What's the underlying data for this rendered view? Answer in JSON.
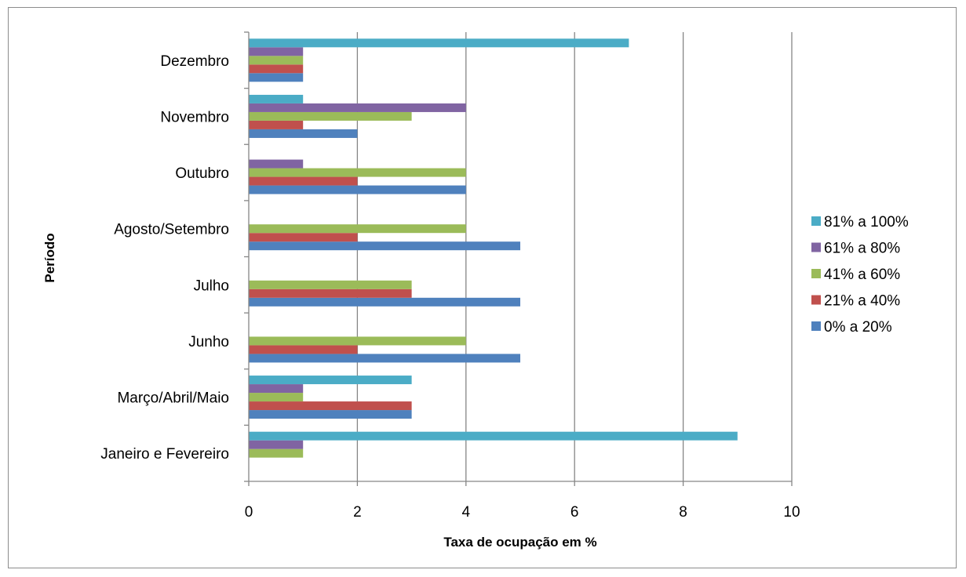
{
  "chart_data": {
    "type": "bar",
    "orientation": "horizontal",
    "title": "",
    "xlabel": "Taxa de ocupação em %",
    "ylabel": "Período",
    "xlim": [
      0,
      10
    ],
    "xticks": [
      0,
      2,
      4,
      6,
      8,
      10
    ],
    "grid": true,
    "legend_position": "right",
    "categories": [
      "Janeiro e Fevereiro",
      "Março/Abril/Maio",
      "Junho",
      "Julho",
      "Agosto/Setembro",
      "Outubro",
      "Novembro",
      "Dezembro"
    ],
    "series": [
      {
        "name": "0% a 20%",
        "color": "#4F81BD",
        "values": [
          0,
          3,
          5,
          5,
          5,
          4,
          2,
          1
        ]
      },
      {
        "name": "21% a 40%",
        "color": "#C0504D",
        "values": [
          0,
          3,
          2,
          3,
          2,
          2,
          1,
          1
        ]
      },
      {
        "name": "41% a 60%",
        "color": "#9BBB59",
        "values": [
          1,
          1,
          4,
          3,
          4,
          4,
          3,
          1
        ]
      },
      {
        "name": "61% a 80%",
        "color": "#8064A2",
        "values": [
          1,
          1,
          0,
          0,
          0,
          1,
          4,
          1
        ]
      },
      {
        "name": "81% a 100%",
        "color": "#4BACC6",
        "values": [
          9,
          3,
          0,
          0,
          0,
          0,
          1,
          7
        ]
      }
    ]
  }
}
